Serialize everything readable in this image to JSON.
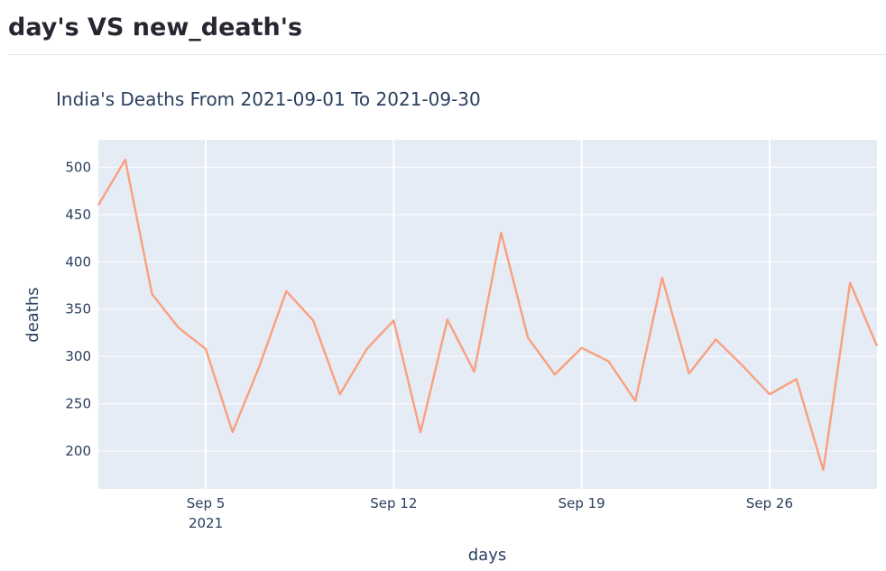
{
  "page": {
    "heading": "day's VS new_death's"
  },
  "colors": {
    "plot_bg": "#e5ecf6",
    "grid": "#ffffff",
    "line": "#f9a07e",
    "text": "#2a3f5f"
  },
  "chart_data": {
    "type": "line",
    "title": "India's Deaths From 2021-09-01 To 2021-09-30",
    "xlabel": "days",
    "ylabel": "deaths",
    "x_range": [
      "2021-09-01",
      "2021-09-30"
    ],
    "ylim": [
      160,
      529
    ],
    "y_ticks": [
      200,
      250,
      300,
      350,
      400,
      450,
      500
    ],
    "x_ticks": [
      {
        "date": "2021-09-05",
        "label": "Sep 5",
        "sublabel": "2021"
      },
      {
        "date": "2021-09-12",
        "label": "Sep 12"
      },
      {
        "date": "2021-09-19",
        "label": "Sep 19"
      },
      {
        "date": "2021-09-26",
        "label": "Sep 26"
      }
    ],
    "grid": true,
    "series": [
      {
        "x": [
          "2021-09-01",
          "2021-09-02",
          "2021-09-03",
          "2021-09-04",
          "2021-09-05",
          "2021-09-06",
          "2021-09-07",
          "2021-09-08",
          "2021-09-09",
          "2021-09-10",
          "2021-09-11",
          "2021-09-12",
          "2021-09-13",
          "2021-09-14",
          "2021-09-15",
          "2021-09-16",
          "2021-09-17",
          "2021-09-18",
          "2021-09-19",
          "2021-09-20",
          "2021-09-21",
          "2021-09-22",
          "2021-09-23",
          "2021-09-24",
          "2021-09-25",
          "2021-09-26",
          "2021-09-27",
          "2021-09-28",
          "2021-09-29",
          "2021-09-30"
        ],
        "values": [
          460,
          508,
          366,
          330,
          308,
          220,
          290,
          369,
          338,
          260,
          308,
          338,
          220,
          339,
          284,
          431,
          320,
          281,
          309,
          295,
          253,
          383,
          282,
          318,
          290,
          260,
          276,
          180,
          378,
          311
        ]
      }
    ]
  }
}
